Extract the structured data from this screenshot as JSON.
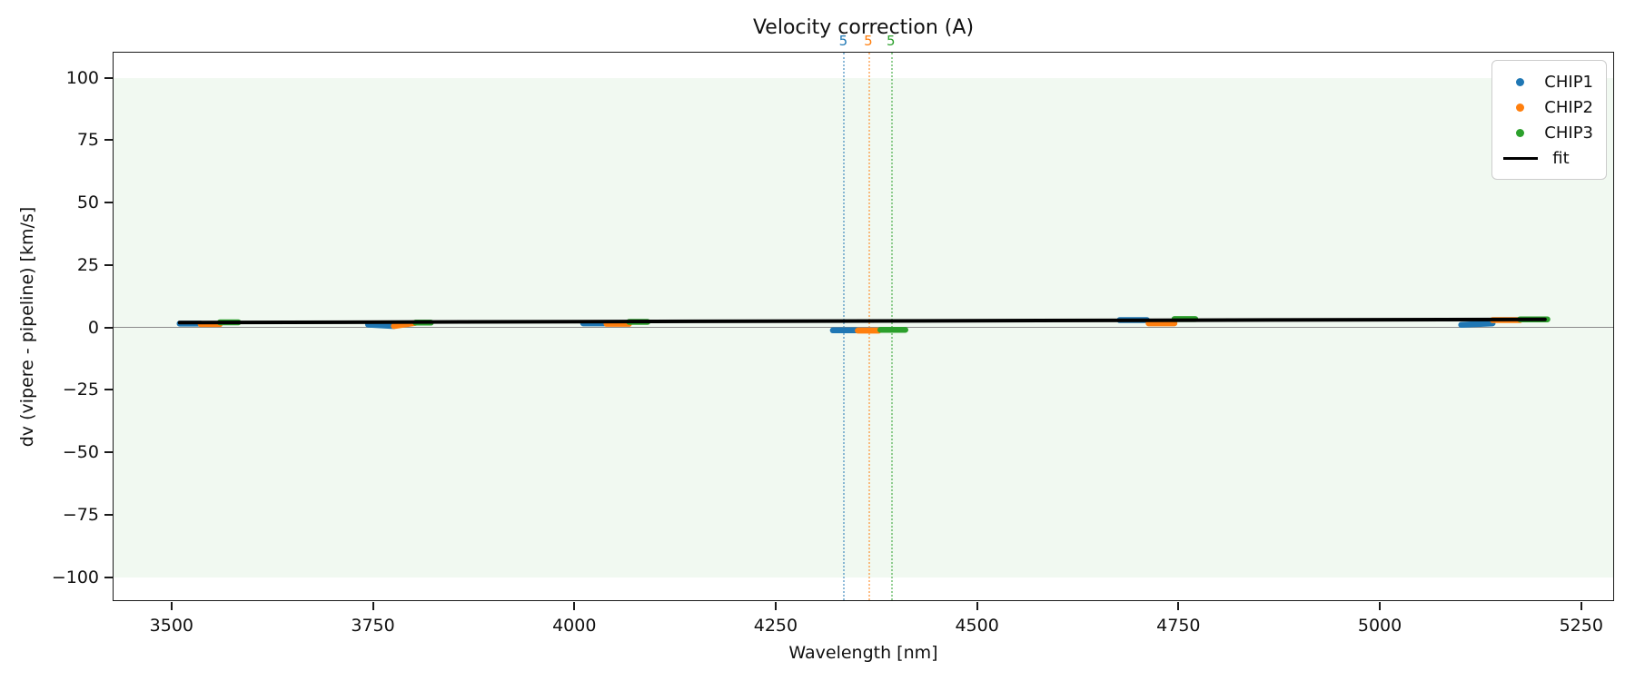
{
  "chart_data": {
    "type": "scatter",
    "title": "Velocity correction (A)",
    "xlabel": "Wavelength [nm]",
    "ylabel": "dv (vipere - pipeline) [km/s]",
    "xlim": [
      3428,
      5292
    ],
    "ylim": [
      -110,
      110
    ],
    "grid": false,
    "xticks": {
      "values": [
        3500,
        3750,
        4000,
        4250,
        4500,
        4750,
        5000,
        5250
      ],
      "labels": [
        "3500",
        "3750",
        "4000",
        "4250",
        "4500",
        "4750",
        "5000",
        "5250"
      ]
    },
    "yticks": {
      "values": [
        100,
        75,
        50,
        25,
        0,
        -25,
        -50,
        -75,
        -100
      ],
      "labels": [
        "100",
        "75",
        "50",
        "25",
        "0",
        "−25",
        "−50",
        "−75",
        "−100"
      ]
    },
    "zero_line": {
      "y": 0,
      "color": "#8a8a8a"
    },
    "band": {
      "ymin": -100,
      "ymax": 100,
      "color": "rgba(44,160,44,0.065)"
    },
    "series": [
      {
        "name": "CHIP1",
        "color": "#1f77b4",
        "marker": "dot",
        "segments": [
          {
            "wl0": 3510,
            "wl1": 3536,
            "dv0": 1.5,
            "dv1": 1.5
          },
          {
            "wl0": 3744,
            "wl1": 3776,
            "dv0": 1.1,
            "dv1": 0.5
          },
          {
            "wl0": 4011,
            "wl1": 4040,
            "dv0": 1.6,
            "dv1": 1.6
          },
          {
            "wl0": 4321,
            "wl1": 4350,
            "dv0": -1.2,
            "dv1": -1.2
          },
          {
            "wl0": 4677,
            "wl1": 4711,
            "dv0": 2.9,
            "dv1": 2.9
          },
          {
            "wl0": 5101,
            "wl1": 5140,
            "dv0": 1.0,
            "dv1": 1.6
          }
        ]
      },
      {
        "name": "CHIP2",
        "color": "#ff7f0e",
        "marker": "dot",
        "segments": [
          {
            "wl0": 3536,
            "wl1": 3560,
            "dv0": 1.3,
            "dv1": 1.3
          },
          {
            "wl0": 3776,
            "wl1": 3803,
            "dv0": 0.5,
            "dv1": 1.8
          },
          {
            "wl0": 4040,
            "wl1": 4068,
            "dv0": 1.4,
            "dv1": 1.4
          },
          {
            "wl0": 4352,
            "wl1": 4378,
            "dv0": -1.3,
            "dv1": -1.3
          },
          {
            "wl0": 4713,
            "wl1": 4745,
            "dv0": 1.6,
            "dv1": 1.6
          },
          {
            "wl0": 5140,
            "wl1": 5174,
            "dv0": 2.9,
            "dv1": 2.9
          }
        ]
      },
      {
        "name": "CHIP3",
        "color": "#2ca02c",
        "marker": "dot",
        "segments": [
          {
            "wl0": 3560,
            "wl1": 3583,
            "dv0": 2.0,
            "dv1": 2.0
          },
          {
            "wl0": 3803,
            "wl1": 3822,
            "dv0": 1.9,
            "dv1": 1.9
          },
          {
            "wl0": 4068,
            "wl1": 4091,
            "dv0": 2.2,
            "dv1": 2.2
          },
          {
            "wl0": 4380,
            "wl1": 4411,
            "dv0": -1.0,
            "dv1": -1.0
          },
          {
            "wl0": 4745,
            "wl1": 4771,
            "dv0": 3.3,
            "dv1": 3.3
          },
          {
            "wl0": 5174,
            "wl1": 5208,
            "dv0": 3.2,
            "dv1": 3.2
          }
        ]
      }
    ],
    "fit": {
      "name": "fit",
      "color": "#000000",
      "points": [
        {
          "wl": 3510,
          "dv": 1.9
        },
        {
          "wl": 5205,
          "dv": 3.2
        }
      ]
    },
    "vlines": [
      {
        "x": 4334,
        "color": "#1f77b4",
        "label": "5"
      },
      {
        "x": 4365,
        "color": "#ff7f0e",
        "label": "5"
      },
      {
        "x": 4393,
        "color": "#2ca02c",
        "label": "5"
      }
    ],
    "legend": {
      "position": "upper right",
      "entries": [
        {
          "label": "CHIP1",
          "color": "#1f77b4",
          "marker": "dot"
        },
        {
          "label": "CHIP2",
          "color": "#ff7f0e",
          "marker": "dot"
        },
        {
          "label": "CHIP3",
          "color": "#2ca02c",
          "marker": "dot"
        },
        {
          "label": "fit",
          "color": "#000000",
          "marker": "line"
        }
      ]
    }
  }
}
